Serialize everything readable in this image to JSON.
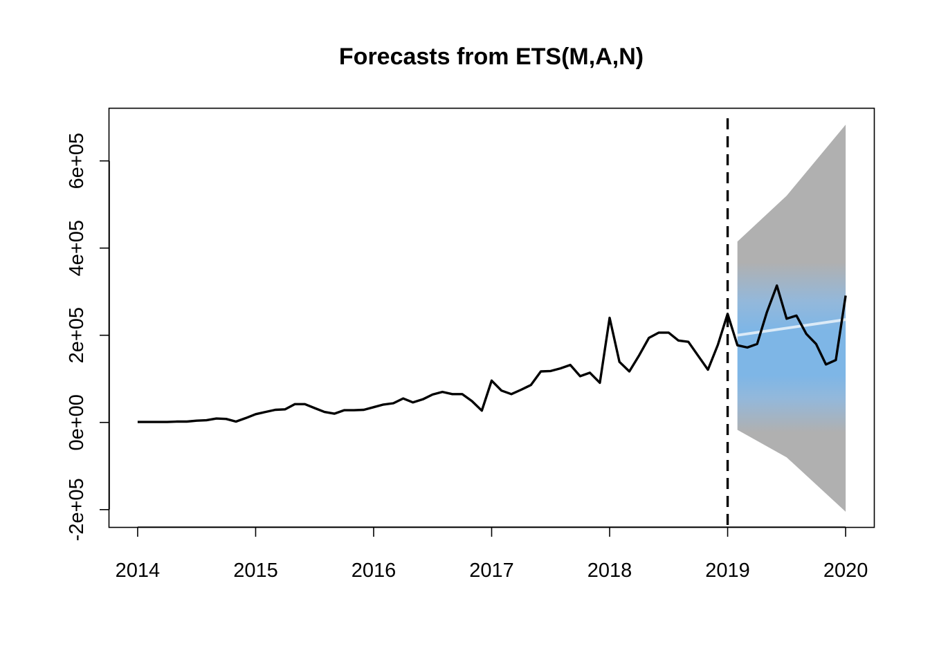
{
  "chart_data": {
    "type": "line",
    "title": "Forecasts from ETS(M,A,N)",
    "xlabel": "",
    "ylabel": "",
    "xlim": [
      2013.76,
      2020.24
    ],
    "ylim": [
      -240000,
      720000
    ],
    "x_ticks": [
      {
        "value": 2014,
        "label": "2014"
      },
      {
        "value": 2015,
        "label": "2015"
      },
      {
        "value": 2016,
        "label": "2016"
      },
      {
        "value": 2017,
        "label": "2017"
      },
      {
        "value": 2018,
        "label": "2018"
      },
      {
        "value": 2019,
        "label": "2019"
      },
      {
        "value": 2020,
        "label": "2020"
      }
    ],
    "y_ticks": [
      {
        "value": -200000,
        "label": "-2e+05"
      },
      {
        "value": 0,
        "label": "0e+00"
      },
      {
        "value": 200000,
        "label": "2e+05"
      },
      {
        "value": 400000,
        "label": "4e+05"
      },
      {
        "value": 600000,
        "label": "6e+05"
      }
    ],
    "grid": false,
    "legend": "none",
    "forecast_origin": 2019,
    "colors": {
      "series": "#000000",
      "point_forecast": "#dbeaf7",
      "interval_80": "#7eb6e6",
      "interval_95": "#b0b0b0",
      "axis": "#000000"
    },
    "series": [
      {
        "role": "observed",
        "x": [
          2014.0,
          2014.083,
          2014.167,
          2014.25,
          2014.333,
          2014.417,
          2014.5,
          2014.583,
          2014.667,
          2014.75,
          2014.833,
          2014.917,
          2015.0,
          2015.083,
          2015.167,
          2015.25,
          2015.333,
          2015.417,
          2015.5,
          2015.583,
          2015.667,
          2015.75,
          2015.833,
          2015.917,
          2016.0,
          2016.083,
          2016.167,
          2016.25,
          2016.333,
          2016.417,
          2016.5,
          2016.583,
          2016.667,
          2016.75,
          2016.833,
          2016.917,
          2017.0,
          2017.083,
          2017.167,
          2017.25,
          2017.333,
          2017.417,
          2017.5,
          2017.583,
          2017.667,
          2017.75,
          2017.833,
          2017.917,
          2018.0,
          2018.083,
          2018.167,
          2018.25,
          2018.333,
          2018.417,
          2018.5,
          2018.583,
          2018.667,
          2018.75,
          2018.833,
          2018.917,
          2019.0,
          2019.083,
          2019.167,
          2019.25,
          2019.333,
          2019.417,
          2019.5,
          2019.583,
          2019.667,
          2019.75,
          2019.833,
          2019.917,
          2020.0
        ],
        "values": [
          1000,
          1000,
          1000,
          1000,
          2000,
          2000,
          4000,
          5000,
          9000,
          8000,
          2000,
          10000,
          19000,
          24000,
          29000,
          30000,
          42000,
          42000,
          33000,
          24000,
          20000,
          28000,
          28000,
          29000,
          35000,
          41000,
          44000,
          55000,
          46000,
          53000,
          64000,
          70000,
          65000,
          65000,
          49000,
          27000,
          96000,
          73000,
          65000,
          75000,
          86000,
          117000,
          118000,
          124000,
          132000,
          106000,
          114000,
          91000,
          240000,
          139000,
          117000,
          154000,
          194000,
          206000,
          206000,
          188000,
          185000,
          153000,
          121000,
          178000,
          249000,
          177000,
          172000,
          180000,
          253000,
          314000,
          238000,
          245000,
          203000,
          180000,
          133000,
          143000,
          291000
        ]
      },
      {
        "role": "point_forecast",
        "x": [
          2019.083,
          2020.0
        ],
        "values": [
          200000,
          236000
        ]
      }
    ],
    "interval_95": {
      "x": [
        2019.083,
        2019.5,
        2020.0
      ],
      "lower": [
        -17000,
        -80000,
        -205000
      ],
      "upper": [
        415000,
        520000,
        683000
      ]
    },
    "interval_80": {
      "x": [
        2019.083,
        2019.5,
        2020.0
      ],
      "lower": [
        60000,
        45000,
        5000
      ],
      "upper": [
        340000,
        390000,
        460000
      ]
    }
  }
}
